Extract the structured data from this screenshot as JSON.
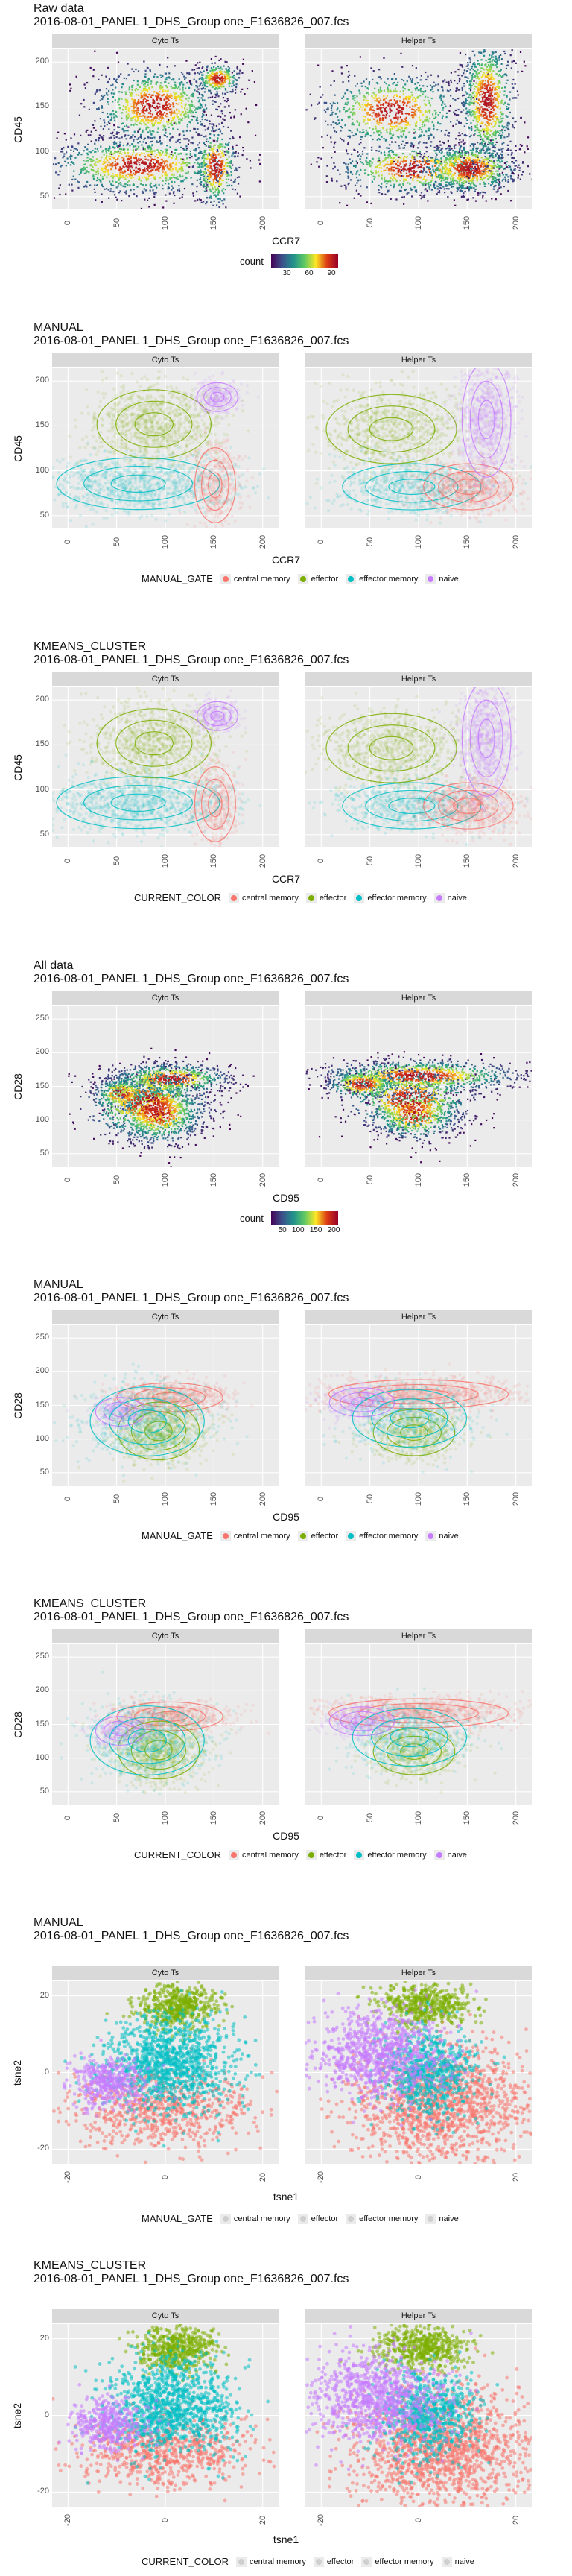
{
  "file": "2016-08-01_PANEL 1_DHS_Group one_F1636826_007.fcs",
  "facets": [
    "Cyto Ts",
    "Helper Ts"
  ],
  "colors": {
    "central memory": "#F8766D",
    "effector": "#7CAE00",
    "effector memory": "#00BFC4",
    "naive": "#C77CFF"
  },
  "sections": [
    {
      "title": "Raw data",
      "xlabel": "CCR7",
      "ylabel": "CD45",
      "yticks": [
        "200",
        "150",
        "100",
        "50"
      ],
      "xticks": [
        "0",
        "50",
        "100",
        "150",
        "200"
      ],
      "legend_type": "colorbar",
      "legend_title": "count",
      "legend_ticks": [
        "30",
        "60",
        "90"
      ]
    },
    {
      "title": "MANUAL",
      "xlabel": "CCR7",
      "ylabel": "CD45",
      "yticks": [
        "200",
        "150",
        "100",
        "50"
      ],
      "xticks": [
        "0",
        "50",
        "100",
        "150",
        "200"
      ],
      "legend_type": "categorical",
      "legend_title": "MANUAL_GATE"
    },
    {
      "title": "KMEANS_CLUSTER",
      "xlabel": "CCR7",
      "ylabel": "CD45",
      "yticks": [
        "200",
        "150",
        "100",
        "50"
      ],
      "xticks": [
        "0",
        "50",
        "100",
        "150",
        "200"
      ],
      "legend_type": "categorical",
      "legend_title": "CURRENT_COLOR"
    },
    {
      "title": "All data",
      "xlabel": "CD95",
      "ylabel": "CD28",
      "yticks": [
        "250",
        "200",
        "150",
        "100",
        "50"
      ],
      "xticks": [
        "0",
        "50",
        "100",
        "150",
        "200"
      ],
      "legend_type": "colorbar",
      "legend_title": "count",
      "legend_ticks": [
        "50",
        "100",
        "150",
        "200"
      ]
    },
    {
      "title": "MANUAL",
      "xlabel": "CD95",
      "ylabel": "CD28",
      "yticks": [
        "250",
        "200",
        "150",
        "100",
        "50"
      ],
      "xticks": [
        "0",
        "50",
        "100",
        "150",
        "200"
      ],
      "legend_type": "categorical",
      "legend_title": "MANUAL_GATE"
    },
    {
      "title": "KMEANS_CLUSTER",
      "xlabel": "CD95",
      "ylabel": "CD28",
      "yticks": [
        "250",
        "200",
        "150",
        "100",
        "50"
      ],
      "xticks": [
        "0",
        "50",
        "100",
        "150",
        "200"
      ],
      "legend_type": "categorical",
      "legend_title": "CURRENT_COLOR"
    },
    {
      "title": "MANUAL",
      "xlabel": "tsne1",
      "ylabel": "tsne2",
      "yticks": [
        "20",
        "0",
        "-20"
      ],
      "xticks": [
        "-20",
        "0",
        "20"
      ],
      "legend_type": "categorical-faint",
      "legend_title": "MANUAL_GATE"
    },
    {
      "title": "KMEANS_CLUSTER",
      "xlabel": "tsne1",
      "ylabel": "tsne2",
      "yticks": [
        "20",
        "0",
        "-20"
      ],
      "xticks": [
        "-20",
        "0",
        "20"
      ],
      "legend_type": "categorical-faint",
      "legend_title": "CURRENT_COLOR"
    }
  ],
  "legend_items": [
    "central memory",
    "effector",
    "effector memory",
    "naive"
  ],
  "chart_data": [
    {
      "type": "heatmap",
      "title": "Raw data",
      "xlabel": "CCR7",
      "ylabel": "CD45",
      "facets": [
        "Cyto Ts",
        "Helper Ts"
      ],
      "xlim": [
        -5,
        215
      ],
      "ylim": [
        35,
        225
      ],
      "color_scale": {
        "title": "count",
        "ticks": [
          30,
          60,
          90
        ]
      }
    },
    {
      "type": "scatter",
      "title": "MANUAL",
      "xlabel": "CCR7",
      "ylabel": "CD45",
      "facets": [
        "Cyto Ts",
        "Helper Ts"
      ],
      "xlim": [
        -5,
        215
      ],
      "ylim": [
        35,
        225
      ],
      "groups": [
        "central memory",
        "effector",
        "effector memory",
        "naive"
      ]
    },
    {
      "type": "scatter",
      "title": "KMEANS_CLUSTER",
      "xlabel": "CCR7",
      "ylabel": "CD45",
      "facets": [
        "Cyto Ts",
        "Helper Ts"
      ],
      "xlim": [
        -5,
        215
      ],
      "ylim": [
        35,
        225
      ],
      "groups": [
        "central memory",
        "effector",
        "effector memory",
        "naive"
      ]
    },
    {
      "type": "heatmap",
      "title": "All data",
      "xlabel": "CD95",
      "ylabel": "CD28",
      "facets": [
        "Cyto Ts",
        "Helper Ts"
      ],
      "xlim": [
        -5,
        215
      ],
      "ylim": [
        10,
        270
      ],
      "color_scale": {
        "title": "count",
        "ticks": [
          50,
          100,
          150,
          200
        ]
      }
    },
    {
      "type": "scatter",
      "title": "MANUAL",
      "xlabel": "CD95",
      "ylabel": "CD28",
      "facets": [
        "Cyto Ts",
        "Helper Ts"
      ],
      "xlim": [
        -5,
        215
      ],
      "ylim": [
        10,
        270
      ],
      "groups": [
        "central memory",
        "effector",
        "effector memory",
        "naive"
      ]
    },
    {
      "type": "scatter",
      "title": "KMEANS_CLUSTER",
      "xlabel": "CD95",
      "ylabel": "CD28",
      "facets": [
        "Cyto Ts",
        "Helper Ts"
      ],
      "xlim": [
        -5,
        215
      ],
      "ylim": [
        10,
        270
      ],
      "groups": [
        "central memory",
        "effector",
        "effector memory",
        "naive"
      ]
    },
    {
      "type": "scatter",
      "title": "MANUAL",
      "xlabel": "tsne1",
      "ylabel": "tsne2",
      "facets": [
        "Cyto Ts",
        "Helper Ts"
      ],
      "xlim": [
        -35,
        35
      ],
      "ylim": [
        -35,
        35
      ],
      "groups": [
        "central memory",
        "effector",
        "effector memory",
        "naive"
      ]
    },
    {
      "type": "scatter",
      "title": "KMEANS_CLUSTER",
      "xlabel": "tsne1",
      "ylabel": "tsne2",
      "facets": [
        "Cyto Ts",
        "Helper Ts"
      ],
      "xlim": [
        -35,
        35
      ],
      "ylim": [
        -35,
        35
      ],
      "groups": [
        "central memory",
        "effector",
        "effector memory",
        "naive"
      ]
    }
  ]
}
